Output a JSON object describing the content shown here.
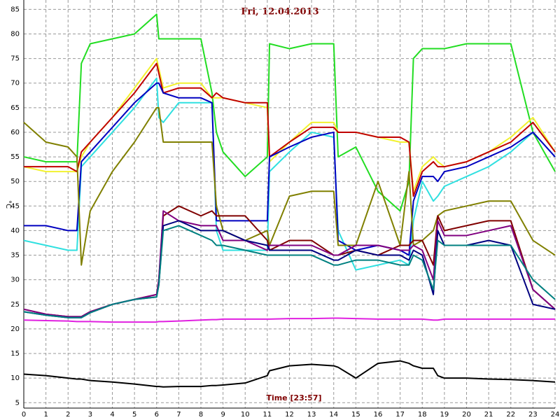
{
  "chart_data": {
    "type": "line",
    "title": "Fri, 12.04.2013",
    "x_label": "Time [23:57]",
    "y_label": "°C",
    "x": [
      0,
      1,
      2,
      2.4,
      2.6,
      3,
      4,
      5,
      6,
      6.1,
      6.3,
      7,
      8,
      8.5,
      8.7,
      9,
      10,
      11,
      11.1,
      12,
      13,
      14,
      14.2,
      15,
      16,
      17,
      17.4,
      17.6,
      18,
      18.5,
      18.7,
      19,
      20,
      21,
      22,
      23,
      24
    ],
    "xlim": [
      0,
      24
    ],
    "xticks": [
      0,
      1,
      2,
      3,
      4,
      5,
      6,
      7,
      8,
      9,
      10,
      11,
      12,
      13,
      14,
      15,
      16,
      17,
      18,
      19,
      20,
      21,
      22,
      23,
      24
    ],
    "ylim": [
      3.9,
      86.9
    ],
    "yticks": [
      5,
      10,
      15,
      20,
      25,
      30,
      35,
      40,
      45,
      50,
      55,
      60,
      65,
      70,
      75,
      80,
      85
    ],
    "grid": true,
    "series": [
      {
        "color": "#22dd22",
        "values": [
          55,
          54,
          54,
          54,
          74,
          78,
          79,
          80,
          84,
          79,
          79,
          79,
          79,
          68,
          60,
          56,
          51,
          55,
          78,
          77,
          78,
          78,
          55,
          57,
          48,
          44,
          50,
          75,
          77,
          77,
          77,
          77,
          78,
          78,
          78,
          60,
          52
        ]
      },
      {
        "color": "#f2f230",
        "values": [
          53,
          52,
          52,
          52,
          55,
          58,
          63,
          69,
          75,
          73,
          69,
          70,
          70,
          67,
          67,
          67,
          66,
          65,
          54,
          58,
          62,
          62,
          60,
          60,
          59,
          58,
          58,
          48,
          53,
          55,
          54,
          53,
          54,
          56,
          59,
          63,
          56
        ]
      },
      {
        "color": "#c00000",
        "values": [
          53,
          53,
          53,
          52,
          56,
          58,
          63,
          68,
          74,
          72,
          68,
          69,
          69,
          67,
          68,
          67,
          66,
          66,
          55,
          58,
          61,
          61,
          60,
          60,
          59,
          59,
          58,
          47,
          52,
          54,
          53,
          53,
          54,
          56,
          58,
          62,
          56
        ]
      },
      {
        "color": "#30e0e0",
        "values": [
          38,
          37,
          36,
          36,
          53,
          55,
          60,
          65,
          71,
          63,
          62,
          66,
          66,
          66,
          40,
          36,
          36,
          36,
          52,
          56,
          60,
          59,
          40,
          32,
          33,
          34,
          33,
          42,
          50,
          46,
          47,
          49,
          51,
          53,
          56,
          60,
          55
        ]
      },
      {
        "color": "#0000c0",
        "values": [
          41,
          41,
          40,
          40,
          54,
          56,
          61,
          66,
          70,
          70,
          68,
          67,
          67,
          66,
          42,
          42,
          42,
          42,
          55,
          57,
          59,
          60,
          38,
          36,
          37,
          36,
          35,
          46,
          51,
          51,
          50,
          52,
          53,
          55,
          57,
          60,
          55
        ]
      },
      {
        "color": "#808000",
        "values": [
          62,
          58,
          57,
          55,
          33,
          44,
          52,
          58,
          65,
          65,
          58,
          58,
          58,
          58,
          45,
          40,
          38,
          40,
          37,
          47,
          48,
          48,
          37,
          37,
          50,
          37,
          52,
          37,
          38,
          40,
          43,
          44,
          45,
          46,
          46,
          38,
          35
        ]
      },
      {
        "color": "#800000",
        "values": [
          24,
          23,
          22.5,
          22.5,
          22.5,
          23.5,
          25,
          26,
          27,
          30,
          43,
          45,
          43,
          44,
          43,
          43,
          43,
          38,
          36,
          38,
          38,
          35,
          35,
          36,
          35,
          37,
          37,
          38,
          38,
          33,
          43,
          40,
          41,
          42,
          42,
          28,
          24
        ]
      },
      {
        "color": "#800080",
        "values": [
          24,
          23,
          22.5,
          22.5,
          22.5,
          23.5,
          25,
          26,
          27,
          30,
          44,
          42,
          41,
          41,
          41,
          38,
          38,
          36,
          37,
          37,
          37,
          35,
          35,
          37,
          37,
          36,
          36,
          37,
          36,
          30,
          42,
          39,
          39,
          40,
          41,
          28,
          24
        ]
      },
      {
        "color": "#000080",
        "values": [
          23.5,
          22.8,
          22.3,
          22.3,
          22.3,
          23.3,
          25,
          26,
          26.5,
          29,
          41,
          42,
          40,
          40,
          40,
          40,
          38,
          37,
          36,
          36,
          36,
          34,
          34,
          36,
          35,
          35,
          34,
          36,
          35,
          27,
          40,
          37,
          37,
          38,
          37,
          25,
          24
        ]
      },
      {
        "color": "#008080",
        "values": [
          23.5,
          22.8,
          22.3,
          22.3,
          22.3,
          23.3,
          25,
          26,
          26.5,
          29,
          40,
          41,
          39,
          38,
          37,
          37,
          36,
          35,
          35,
          35,
          35,
          33,
          33,
          34,
          34,
          33,
          33,
          35,
          34,
          28,
          38,
          37,
          37,
          37,
          37,
          30,
          26
        ]
      },
      {
        "color": "#e020e0",
        "values": [
          21.8,
          21.7,
          21.6,
          21.5,
          21.5,
          21.5,
          21.4,
          21.4,
          21.4,
          21.5,
          21.5,
          21.6,
          21.8,
          21.9,
          21.9,
          22,
          22,
          22,
          22,
          22.1,
          22.1,
          22.2,
          22.2,
          22.1,
          22,
          22,
          22,
          22,
          22,
          21.8,
          21.8,
          22,
          22,
          22,
          22,
          22,
          22
        ]
      },
      {
        "color": "#000000",
        "values": [
          10.8,
          10.5,
          10,
          9.8,
          9.8,
          9.5,
          9.2,
          8.8,
          8.3,
          8.3,
          8.2,
          8.3,
          8.3,
          8.5,
          8.5,
          8.6,
          9,
          10.5,
          11.5,
          12.5,
          12.8,
          12.5,
          12.2,
          10,
          13,
          13.5,
          13,
          12.5,
          12,
          12,
          10.5,
          10,
          10,
          9.8,
          9.7,
          9.5,
          9.2
        ]
      }
    ]
  }
}
